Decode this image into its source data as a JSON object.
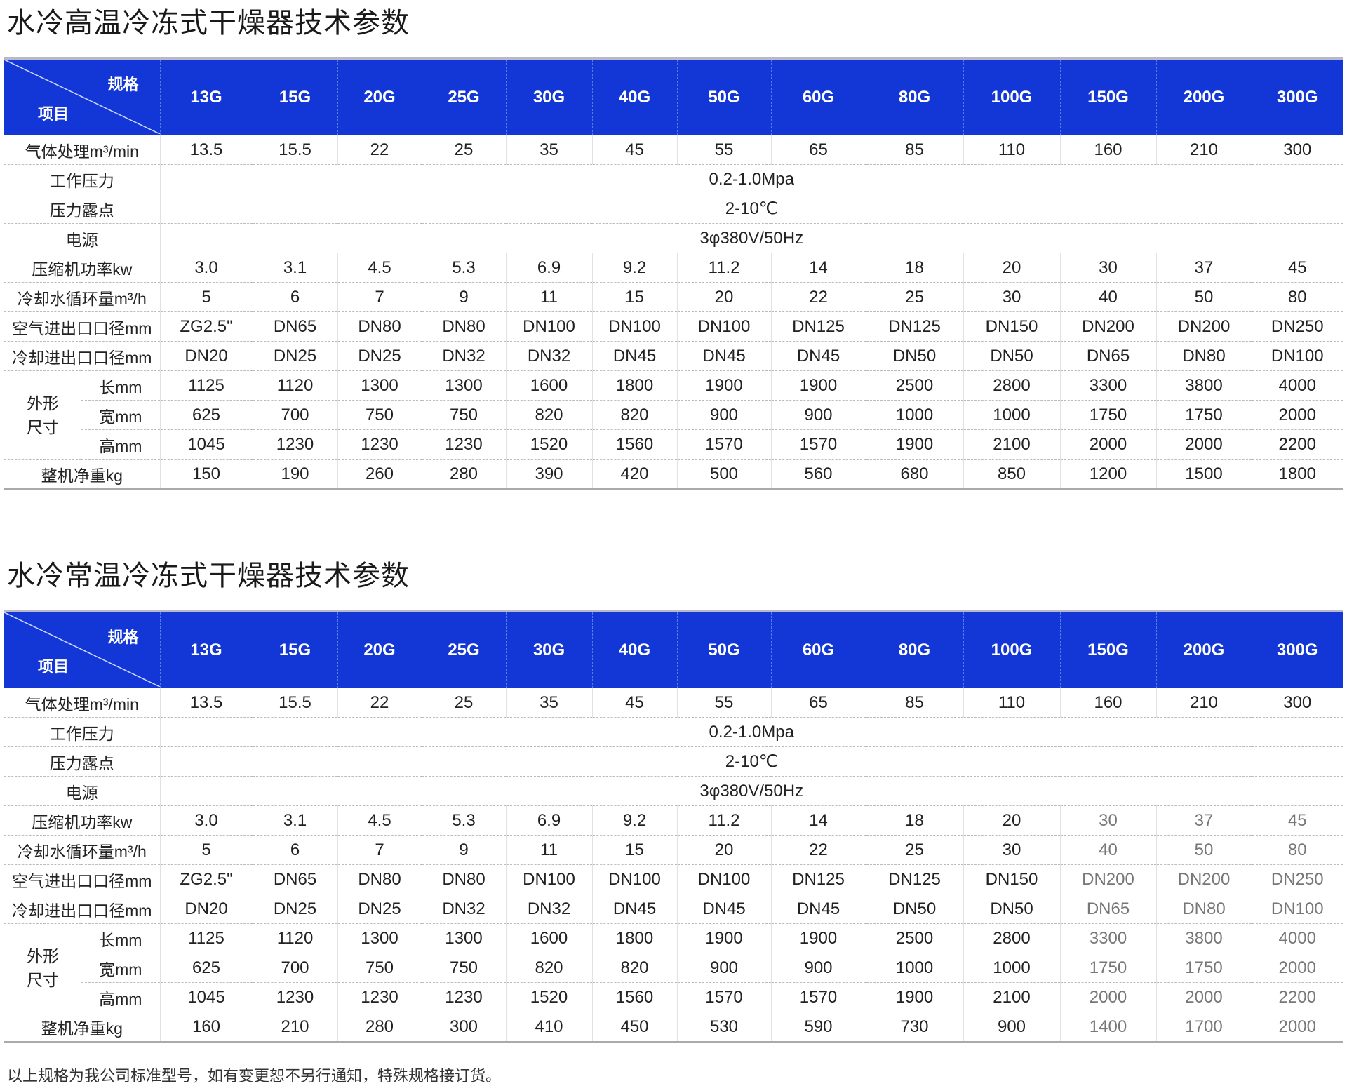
{
  "corner": {
    "spec": "规格",
    "item": "项目"
  },
  "models": [
    "13G",
    "15G",
    "20G",
    "25G",
    "30G",
    "40G",
    "50G",
    "60G",
    "80G",
    "100G",
    "150G",
    "200G",
    "300G"
  ],
  "tables": [
    {
      "title": "水冷高温冷冻式干燥器技术参数",
      "rows": [
        {
          "label": "气体处理m³/min",
          "values": [
            "13.5",
            "15.5",
            "22",
            "25",
            "35",
            "45",
            "55",
            "65",
            "85",
            "110",
            "160",
            "210",
            "300"
          ]
        },
        {
          "label": "工作压力",
          "merged": "0.2-1.0Mpa"
        },
        {
          "label": "压力露点",
          "merged": "2-10℃"
        },
        {
          "label": "电源",
          "merged": "3φ380V/50Hz"
        },
        {
          "label": "压缩机功率kw",
          "values": [
            "3.0",
            "3.1",
            "4.5",
            "5.3",
            "6.9",
            "9.2",
            "11.2",
            "14",
            "18",
            "20",
            "30",
            "37",
            "45"
          ]
        },
        {
          "label": "冷却水循环量m³/h",
          "values": [
            "5",
            "6",
            "7",
            "9",
            "11",
            "15",
            "20",
            "22",
            "25",
            "30",
            "40",
            "50",
            "80"
          ]
        },
        {
          "label": "空气进出口口径mm",
          "values": [
            "ZG2.5\"",
            "DN65",
            "DN80",
            "DN80",
            "DN100",
            "DN100",
            "DN100",
            "DN125",
            "DN125",
            "DN150",
            "DN200",
            "DN200",
            "DN250"
          ]
        },
        {
          "label": "冷却进出口口径mm",
          "values": [
            "DN20",
            "DN25",
            "DN25",
            "DN32",
            "DN32",
            "DN45",
            "DN45",
            "DN45",
            "DN50",
            "DN50",
            "DN65",
            "DN80",
            "DN100"
          ]
        },
        {
          "group": "外形尺寸",
          "label": "长mm",
          "values": [
            "1125",
            "1120",
            "1300",
            "1300",
            "1600",
            "1800",
            "1900",
            "1900",
            "2500",
            "2800",
            "3300",
            "3800",
            "4000"
          ]
        },
        {
          "group": "外形尺寸",
          "label": "宽mm",
          "values": [
            "625",
            "700",
            "750",
            "750",
            "820",
            "820",
            "900",
            "900",
            "1000",
            "1000",
            "1750",
            "1750",
            "2000"
          ]
        },
        {
          "group": "外形尺寸",
          "label": "高mm",
          "values": [
            "1045",
            "1230",
            "1230",
            "1230",
            "1520",
            "1560",
            "1570",
            "1570",
            "1900",
            "2100",
            "2000",
            "2000",
            "2200"
          ]
        },
        {
          "label": "整机净重kg",
          "values": [
            "150",
            "190",
            "260",
            "280",
            "390",
            "420",
            "500",
            "560",
            "680",
            "850",
            "1200",
            "1500",
            "1800"
          ]
        }
      ]
    },
    {
      "title": "水冷常温冷冻式干燥器技术参数",
      "rows": [
        {
          "label": "气体处理m³/min",
          "values": [
            "13.5",
            "15.5",
            "22",
            "25",
            "35",
            "45",
            "55",
            "65",
            "85",
            "110",
            "160",
            "210",
            "300"
          ]
        },
        {
          "label": "工作压力",
          "merged": "0.2-1.0Mpa"
        },
        {
          "label": "压力露点",
          "merged": "2-10℃"
        },
        {
          "label": "电源",
          "merged": "3φ380V/50Hz"
        },
        {
          "label": "压缩机功率kw",
          "values": [
            "3.0",
            "3.1",
            "4.5",
            "5.3",
            "6.9",
            "9.2",
            "11.2",
            "14",
            "18",
            "20",
            "30",
            "37",
            "45"
          ]
        },
        {
          "label": "冷却水循环量m³/h",
          "values": [
            "5",
            "6",
            "7",
            "9",
            "11",
            "15",
            "20",
            "22",
            "25",
            "30",
            "40",
            "50",
            "80"
          ]
        },
        {
          "label": "空气进出口口径mm",
          "values": [
            "ZG2.5\"",
            "DN65",
            "DN80",
            "DN80",
            "DN100",
            "DN100",
            "DN100",
            "DN125",
            "DN125",
            "DN150",
            "DN200",
            "DN200",
            "DN250"
          ]
        },
        {
          "label": "冷却进出口口径mm",
          "values": [
            "DN20",
            "DN25",
            "DN25",
            "DN32",
            "DN32",
            "DN45",
            "DN45",
            "DN45",
            "DN50",
            "DN50",
            "DN65",
            "DN80",
            "DN100"
          ]
        },
        {
          "group": "外形尺寸",
          "label": "长mm",
          "values": [
            "1125",
            "1120",
            "1300",
            "1300",
            "1600",
            "1800",
            "1900",
            "1900",
            "2500",
            "2800",
            "3300",
            "3800",
            "4000"
          ]
        },
        {
          "group": "外形尺寸",
          "label": "宽mm",
          "values": [
            "625",
            "700",
            "750",
            "750",
            "820",
            "820",
            "900",
            "900",
            "1000",
            "1000",
            "1750",
            "1750",
            "2000"
          ]
        },
        {
          "group": "外形尺寸",
          "label": "高mm",
          "values": [
            "1045",
            "1230",
            "1230",
            "1230",
            "1520",
            "1560",
            "1570",
            "1570",
            "1900",
            "2100",
            "2000",
            "2000",
            "2200"
          ]
        },
        {
          "label": "整机净重kg",
          "values": [
            "160",
            "210",
            "280",
            "300",
            "410",
            "450",
            "530",
            "590",
            "730",
            "900",
            "1400",
            "1700",
            "2000"
          ]
        }
      ]
    }
  ],
  "footer": "以上规格为我公司标准型号，如有变更恕不另行通知，特殊规格接订货。",
  "colors": {
    "header_bg": "#1336d6",
    "header_text": "#ffffff"
  }
}
